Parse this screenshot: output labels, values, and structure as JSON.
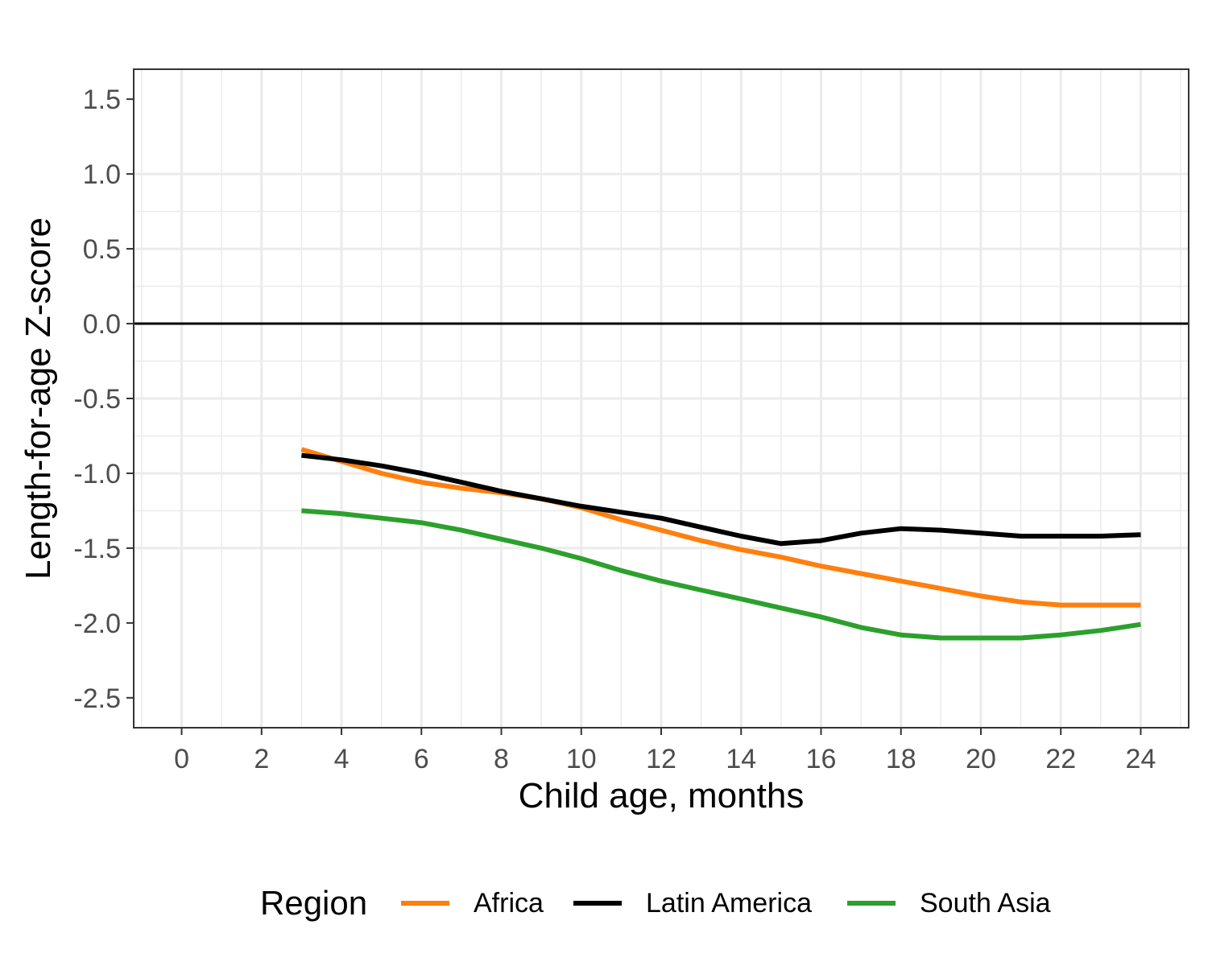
{
  "chart_data": {
    "type": "line",
    "xlabel": "Child age, months",
    "ylabel": "Length-for-age Z-score",
    "xlim": [
      -1.2,
      25.2
    ],
    "ylim": [
      -2.7,
      1.7
    ],
    "x_ticks": [
      0,
      2,
      4,
      6,
      8,
      10,
      12,
      14,
      16,
      18,
      20,
      22,
      24
    ],
    "y_ticks": [
      1.5,
      1.0,
      0.5,
      0.0,
      -0.5,
      -1.0,
      -1.5,
      -2.0,
      -2.5
    ],
    "x_tick_labels": [
      "0",
      "2",
      "4",
      "6",
      "8",
      "10",
      "12",
      "14",
      "16",
      "18",
      "20",
      "22",
      "24"
    ],
    "y_tick_labels": [
      "1.5",
      "1.0",
      "0.5",
      "0.0",
      "-0.5",
      "-1.0",
      "-1.5",
      "-2.0",
      "-2.5"
    ],
    "reference_line_y": 0,
    "grid": true,
    "legend": {
      "title": "Region",
      "position": "bottom"
    },
    "x": [
      3,
      4,
      5,
      6,
      7,
      8,
      9,
      10,
      11,
      12,
      13,
      14,
      15,
      16,
      17,
      18,
      19,
      20,
      21,
      22,
      23,
      24
    ],
    "series": [
      {
        "name": "Africa",
        "color": "#ff7f0e",
        "values": [
          -0.84,
          -0.92,
          -1.0,
          -1.06,
          -1.1,
          -1.13,
          -1.17,
          -1.23,
          -1.31,
          -1.38,
          -1.45,
          -1.51,
          -1.56,
          -1.62,
          -1.67,
          -1.72,
          -1.77,
          -1.82,
          -1.86,
          -1.88,
          -1.88,
          -1.88
        ]
      },
      {
        "name": "Latin America",
        "color": "#000000",
        "values": [
          -0.88,
          -0.91,
          -0.95,
          -1.0,
          -1.06,
          -1.12,
          -1.17,
          -1.22,
          -1.26,
          -1.3,
          -1.36,
          -1.42,
          -1.47,
          -1.45,
          -1.4,
          -1.37,
          -1.38,
          -1.4,
          -1.42,
          -1.42,
          -1.42,
          -1.41
        ]
      },
      {
        "name": "South Asia",
        "color": "#2ca02c",
        "values": [
          -1.25,
          -1.27,
          -1.3,
          -1.33,
          -1.38,
          -1.44,
          -1.5,
          -1.57,
          -1.65,
          -1.72,
          -1.78,
          -1.84,
          -1.9,
          -1.96,
          -2.03,
          -2.08,
          -2.1,
          -2.1,
          -2.1,
          -2.08,
          -2.05,
          -2.01
        ]
      }
    ]
  }
}
